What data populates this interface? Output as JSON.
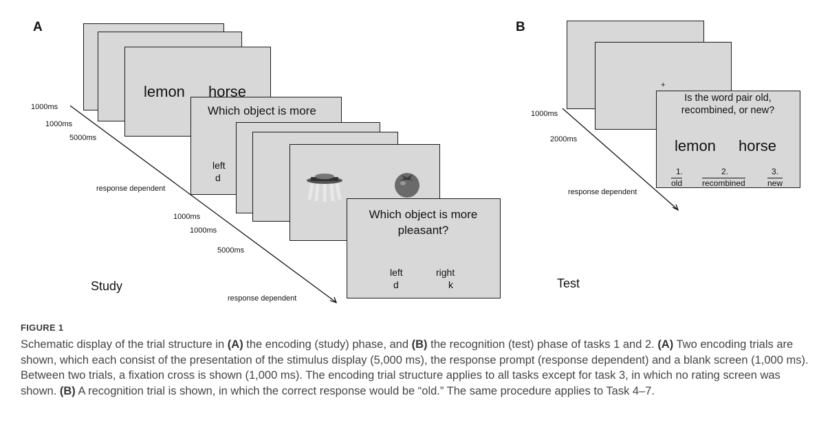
{
  "panel_a": {
    "letter": "A",
    "times": [
      "1000ms",
      "1000ms",
      "5000ms",
      "response dependent",
      "1000ms",
      "1000ms",
      "5000ms",
      "response dependent"
    ],
    "stimulus_words": [
      "lemon",
      "horse"
    ],
    "question_partial": "Which object is more",
    "response_partial": [
      "left",
      "d"
    ],
    "question_full": "Which object is more pleasant?",
    "response_keys": [
      {
        "label": "left",
        "key": "d"
      },
      {
        "label": "right",
        "key": "k"
      }
    ],
    "phase": "Study"
  },
  "panel_b": {
    "letter": "B",
    "fixation": "+",
    "times": [
      "1000ms",
      "2000ms",
      "response dependent"
    ],
    "question": "Is the word pair old, recombined, or new?",
    "words": [
      "lemon",
      "horse"
    ],
    "options": [
      {
        "num": "1.",
        "label": "old"
      },
      {
        "num": "2.",
        "label": "recombined"
      },
      {
        "num": "3.",
        "label": "new"
      }
    ],
    "phase": "Test"
  },
  "figure_label": "FIGURE 1",
  "caption": {
    "s1": "Schematic display of the trial structure in ",
    "b1": "(A)",
    "s2": " the encoding (study) phase, and ",
    "b2": "(B)",
    "s3": " the recognition (test) phase of tasks 1 and 2. ",
    "b3": "(A)",
    "s4": " Two encoding trials are shown, which each consist of the presentation of the stimulus display (5,000 ms), the response prompt (response dependent) and a blank screen (1,000 ms). Between two trials, a fixation cross is shown (1,000 ms). The encoding trial structure applies to all tasks except for task 3, in which no rating screen was shown. ",
    "b4": "(B)",
    "s5": " A recognition trial is shown, in which the correct response would be “old.” The same procedure applies to Task 4–7."
  }
}
